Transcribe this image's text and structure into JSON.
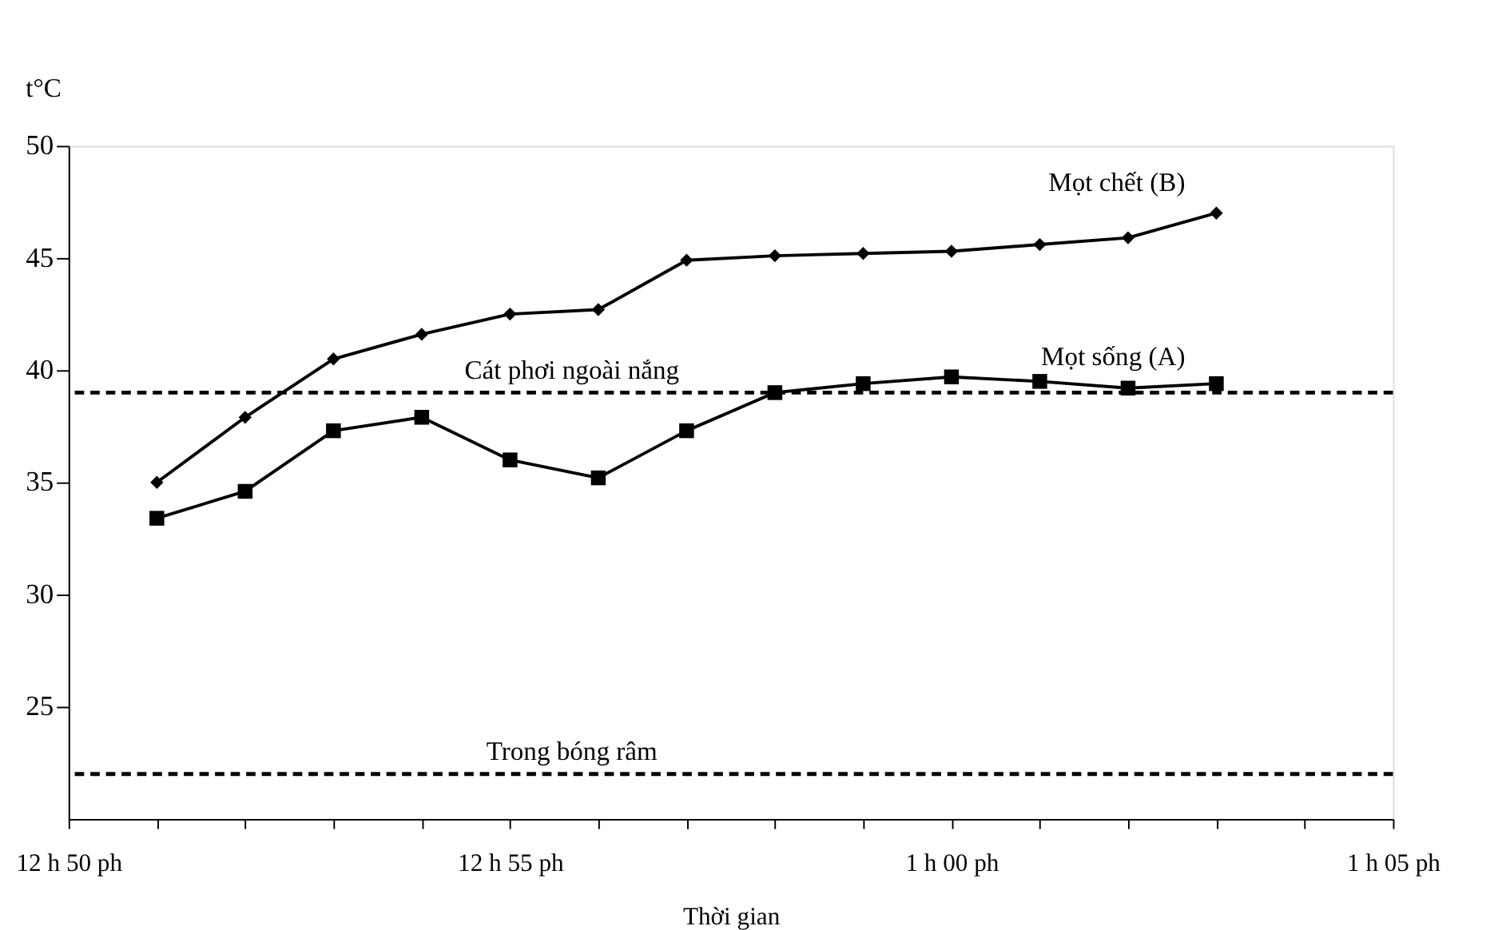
{
  "chart_data": {
    "type": "line",
    "xlabel": "Thời gian",
    "ylabel": "t°C",
    "categories": [
      "12 h 50 ph",
      null,
      null,
      null,
      null,
      "12 h 55 ph",
      null,
      null,
      null,
      null,
      "1 h 00 ph",
      null,
      null,
      null,
      null,
      "1 h 05 ph"
    ],
    "series": [
      {
        "name": "Mọt chết (B)",
        "color": "#000000",
        "marker": "diamond",
        "values": [
          null,
          35.0,
          37.9,
          40.5,
          41.6,
          42.5,
          42.7,
          44.9,
          45.1,
          45.2,
          45.3,
          45.6,
          45.9,
          47.0,
          null,
          null
        ]
      },
      {
        "name": "Mọt sống (A)",
        "color": "#000000",
        "marker": "square",
        "values": [
          null,
          33.4,
          34.6,
          37.3,
          37.9,
          36.0,
          35.2,
          37.3,
          39.0,
          39.4,
          39.7,
          39.5,
          39.2,
          39.4,
          null,
          null
        ]
      }
    ],
    "ylim": [
      20,
      50
    ],
    "yticks": [
      25,
      30,
      35,
      40,
      45,
      50
    ],
    "ref_lines": [
      {
        "axis": "y",
        "value": 39,
        "label": "Cát phơi ngoài nắng",
        "color": "#000000",
        "line_style": "dashed"
      },
      {
        "axis": "y",
        "value": 22,
        "label": "Trong bóng râm",
        "color": "#000000",
        "line_style": "dashed"
      }
    ],
    "grid": false
  }
}
